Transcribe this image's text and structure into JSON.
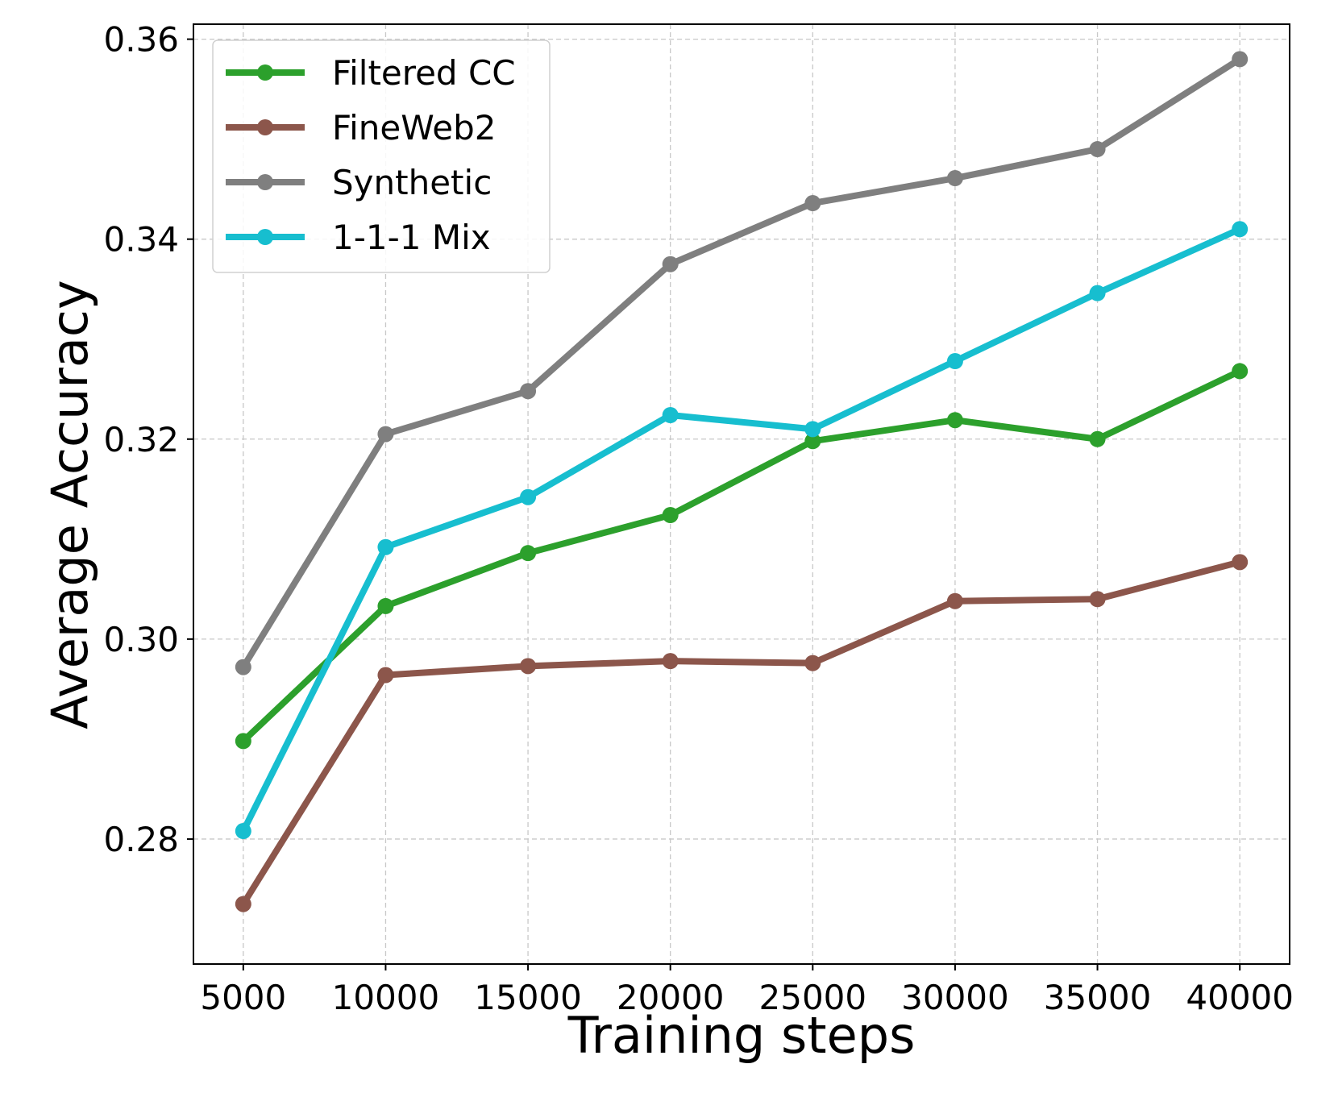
{
  "chart_data": {
    "type": "line",
    "xlabel": "Training steps",
    "ylabel": "Average Accuracy",
    "x": [
      5000,
      10000,
      15000,
      20000,
      25000,
      30000,
      35000,
      40000
    ],
    "x_ticks": [
      "5000",
      "10000",
      "15000",
      "20000",
      "25000",
      "30000",
      "35000",
      "40000"
    ],
    "y_ticks": [
      "0.28",
      "0.30",
      "0.32",
      "0.34",
      "0.36"
    ],
    "xlim": [
      3250,
      41750
    ],
    "ylim": [
      0.2675,
      0.3615
    ],
    "grid": true,
    "legend_position": "top-left",
    "series": [
      {
        "name": "Filtered CC",
        "color": "#2ca02c",
        "values": [
          0.2898,
          0.3033,
          0.3086,
          0.3124,
          0.3198,
          0.3219,
          0.32,
          0.3268
        ]
      },
      {
        "name": "FineWeb2",
        "color": "#8c564b",
        "values": [
          0.2735,
          0.2964,
          0.2973,
          0.2978,
          0.2976,
          0.3038,
          0.304,
          0.3077
        ]
      },
      {
        "name": "Synthetic",
        "color": "#7f7f7f",
        "values": [
          0.2972,
          0.3205,
          0.3248,
          0.3375,
          0.3436,
          0.3461,
          0.349,
          0.358
        ]
      },
      {
        "name": "1-1-1 Mix",
        "color": "#17becf",
        "values": [
          0.2808,
          0.3092,
          0.3142,
          0.3224,
          0.321,
          0.3278,
          0.3346,
          0.341
        ]
      }
    ]
  }
}
